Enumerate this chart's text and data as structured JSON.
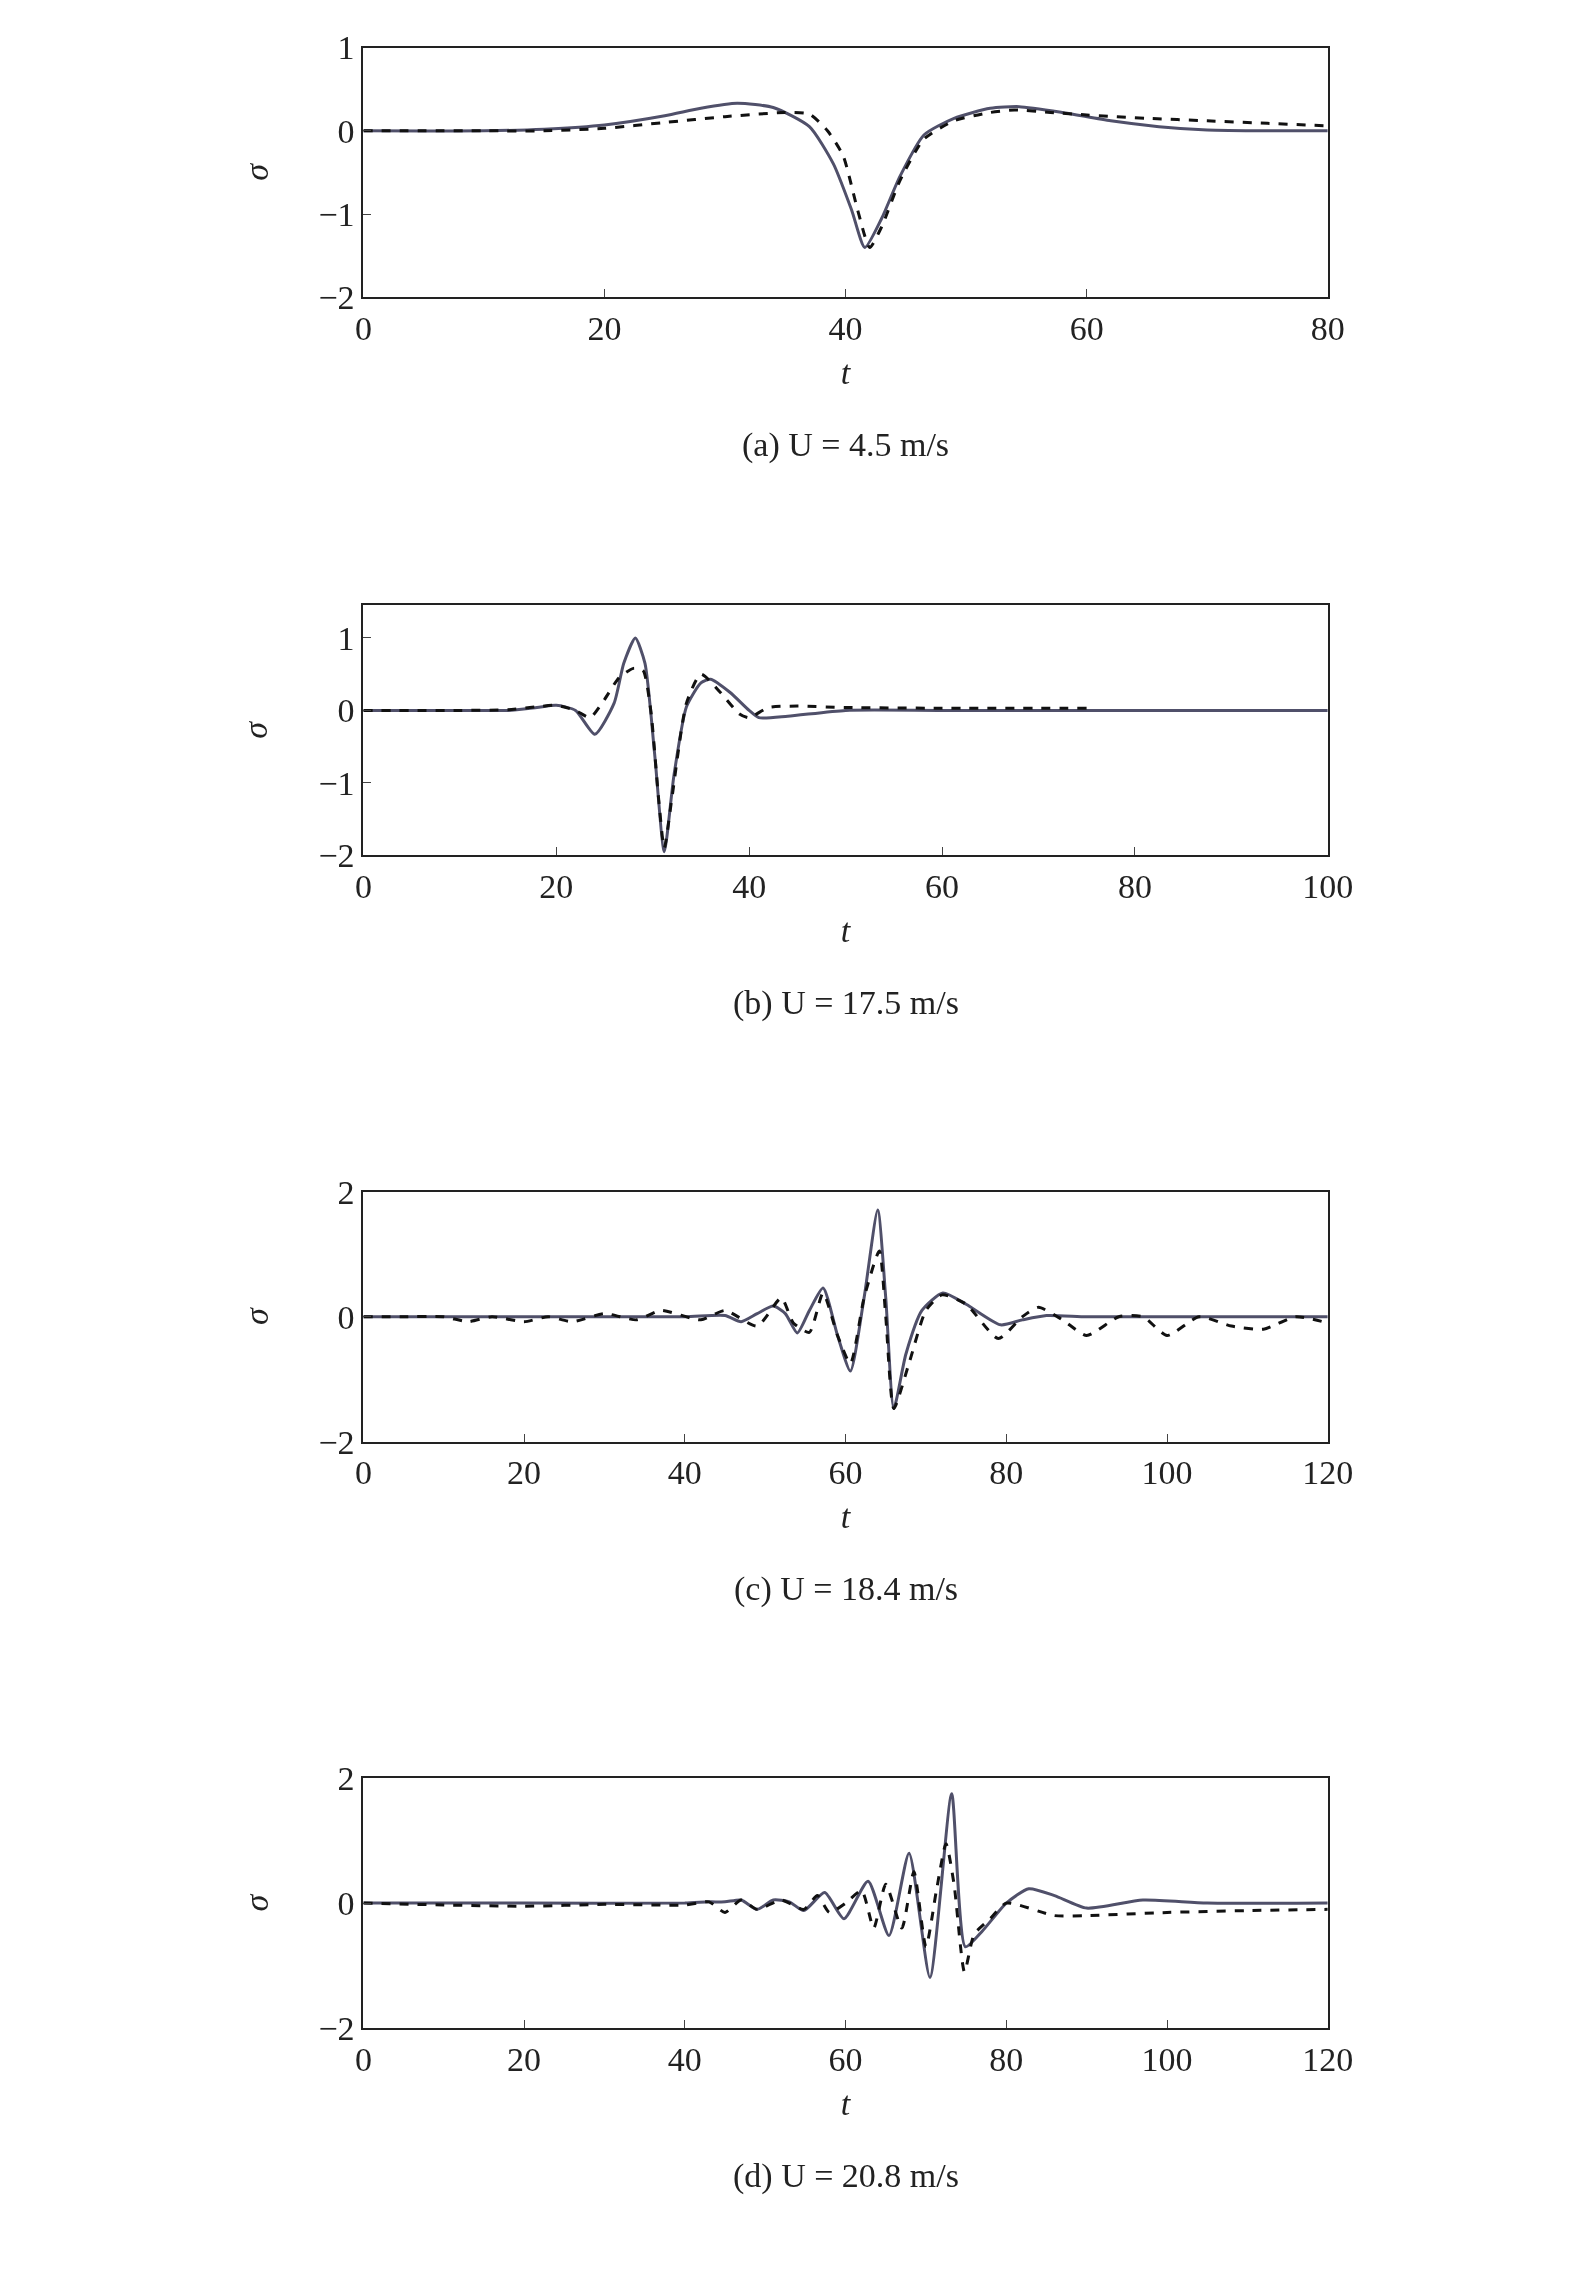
{
  "chart_data": [
    {
      "type": "line",
      "title": "(a) U = 4.5 m/s",
      "xlabel": "t",
      "ylabel": "σ",
      "xlim": [
        0,
        80
      ],
      "ylim": [
        -2,
        1
      ],
      "xticks": [
        0,
        20,
        40,
        60,
        80
      ],
      "yticks": [
        -2,
        -1,
        0,
        1
      ],
      "series": [
        {
          "color": "#50506a",
          "line_style": "solid",
          "x": [
            0,
            10,
            15,
            20,
            25,
            28,
            31,
            34,
            37,
            39,
            40.5,
            41.6,
            43,
            44.5,
            46.5,
            49,
            52,
            54.4,
            58,
            62,
            66,
            70,
            75,
            80
          ],
          "values": [
            0,
            0,
            0.02,
            0.07,
            0.18,
            0.27,
            0.33,
            0.28,
            0.05,
            -0.4,
            -0.95,
            -1.4,
            -1.05,
            -0.55,
            -0.05,
            0.15,
            0.27,
            0.29,
            0.22,
            0.12,
            0.05,
            0.01,
            0,
            0
          ]
        },
        {
          "color": "#111111",
          "line_style": "dashed",
          "x": [
            0,
            10,
            15,
            20,
            25,
            30,
            35,
            37,
            38.5,
            39.8,
            41,
            42,
            43,
            44.5,
            46.5,
            49,
            52,
            54,
            57,
            60,
            65,
            70,
            75,
            80
          ],
          "values": [
            0,
            0,
            0,
            0.03,
            0.1,
            0.17,
            0.22,
            0.2,
            0.0,
            -0.3,
            -0.95,
            -1.4,
            -1.15,
            -0.6,
            -0.1,
            0.12,
            0.22,
            0.25,
            0.22,
            0.19,
            0.15,
            0.12,
            0.09,
            0.06
          ]
        }
      ]
    },
    {
      "type": "line",
      "title": "(b) U = 17.5 m/s",
      "xlabel": "t",
      "ylabel": "σ",
      "xlim": [
        0,
        100
      ],
      "ylim": [
        -2,
        1.45
      ],
      "xticks": [
        0,
        20,
        40,
        60,
        80,
        100
      ],
      "yticks": [
        -2,
        -1,
        0,
        1
      ],
      "series": [
        {
          "color": "#50506a",
          "line_style": "solid",
          "x": [
            0,
            10,
            15,
            18,
            20,
            22,
            24,
            26,
            27,
            28.2,
            29.2,
            30.2,
            31.2,
            32.2,
            33.5,
            35,
            36,
            38,
            40,
            41,
            44,
            50,
            60,
            80,
            100
          ],
          "values": [
            0,
            0,
            0,
            0.04,
            0.07,
            0.0,
            -0.33,
            0.1,
            0.65,
            1.0,
            0.65,
            -0.6,
            -1.95,
            -0.9,
            0.05,
            0.38,
            0.43,
            0.25,
            0.0,
            -0.1,
            -0.08,
            0,
            0,
            0,
            0
          ]
        },
        {
          "color": "#111111",
          "line_style": "dashed",
          "x": [
            0,
            10,
            15,
            18,
            20,
            22,
            23.5,
            25,
            26.5,
            28,
            29,
            29.8,
            30.6,
            31.2,
            32,
            33.5,
            35,
            37,
            39,
            40,
            42,
            45,
            50,
            60,
            75
          ],
          "values": [
            0,
            0,
            0.01,
            0.05,
            0.07,
            0.0,
            -0.1,
            0.15,
            0.45,
            0.58,
            0.55,
            0.0,
            -1.2,
            -1.9,
            -1.2,
            0.1,
            0.5,
            0.25,
            -0.05,
            -0.1,
            0.04,
            0.06,
            0.04,
            0.03,
            0.03
          ]
        }
      ]
    },
    {
      "type": "line",
      "title": "(c) U = 18.4 m/s",
      "xlabel": "t",
      "ylabel": "σ",
      "xlim": [
        0,
        120
      ],
      "ylim": [
        -2,
        2
      ],
      "xticks": [
        0,
        20,
        40,
        60,
        80,
        100,
        120
      ],
      "yticks": [
        -2,
        0,
        2
      ],
      "series": [
        {
          "color": "#50506a",
          "line_style": "solid",
          "x": [
            0,
            20,
            40,
            45,
            47,
            49,
            51,
            52.5,
            54,
            55.5,
            57.2,
            59,
            60.6,
            62.3,
            64,
            65,
            66,
            67.5,
            69.5,
            72.1,
            75,
            79.3,
            82,
            85,
            90,
            100,
            120
          ],
          "values": [
            0,
            0,
            0,
            0.02,
            -0.08,
            0.05,
            0.17,
            0.05,
            -0.26,
            0.1,
            0.46,
            -0.3,
            -0.87,
            0.3,
            1.71,
            0.3,
            -1.47,
            -0.6,
            0.1,
            0.38,
            0.2,
            -0.13,
            -0.05,
            0.02,
            0,
            0,
            0
          ]
        },
        {
          "color": "#111111",
          "line_style": "dashed",
          "x": [
            0,
            5,
            10,
            13,
            16,
            20,
            23,
            26,
            30,
            34,
            37,
            42,
            45,
            49,
            52,
            53.5,
            55.5,
            57.2,
            59,
            60.6,
            62.3,
            64.2,
            65,
            66,
            68,
            70,
            72,
            75,
            79,
            82,
            84,
            87,
            90,
            94,
            97,
            100,
            104,
            108,
            112,
            116,
            120
          ],
          "values": [
            0,
            0,
            0,
            -0.08,
            0.0,
            -0.08,
            0,
            -0.08,
            0.05,
            -0.05,
            0.1,
            -0.05,
            0.1,
            -0.15,
            0.3,
            -0.1,
            -0.25,
            0.38,
            -0.3,
            -0.75,
            0.3,
            1.05,
            0.0,
            -1.47,
            -0.7,
            0.1,
            0.35,
            0.2,
            -0.35,
            0.0,
            0.15,
            -0.05,
            -0.3,
            0.0,
            0.0,
            -0.3,
            0,
            -0.15,
            -0.2,
            0,
            -0.1
          ]
        }
      ]
    },
    {
      "type": "line",
      "title": "(d) U = 20.8 m/s",
      "xlabel": "t",
      "ylabel": "σ",
      "xlim": [
        0,
        120
      ],
      "ylim": [
        -2,
        2
      ],
      "xticks": [
        0,
        20,
        40,
        60,
        80,
        100,
        120
      ],
      "yticks": [
        -2,
        0,
        2
      ],
      "series": [
        {
          "color": "#50506a",
          "line_style": "solid",
          "x": [
            0,
            20,
            40,
            43,
            45,
            47,
            49,
            51,
            53,
            54.8,
            57.4,
            59.8,
            62.8,
            65.4,
            67.9,
            70.5,
            73.2,
            74.9,
            77,
            80,
            82.8,
            86,
            90,
            97,
            105,
            120
          ],
          "values": [
            0,
            0,
            0,
            0.02,
            0.02,
            0.05,
            -0.1,
            0.05,
            0.02,
            -0.12,
            0.17,
            -0.25,
            0.35,
            -0.52,
            0.8,
            -1.19,
            1.75,
            -0.7,
            -0.45,
            0,
            0.23,
            0.12,
            -0.08,
            0.05,
            0.0,
            0
          ]
        },
        {
          "color": "#111111",
          "line_style": "dashed",
          "x": [
            0,
            10,
            20,
            30,
            40,
            43,
            45,
            47,
            49,
            52,
            54.8,
            56.5,
            58,
            60,
            62,
            63.5,
            65,
            67,
            68.5,
            70,
            71.3,
            72.5,
            73.5,
            74.8,
            76,
            78,
            80,
            86,
            90,
            100,
            110,
            120
          ],
          "values": [
            0,
            -0.03,
            -0.05,
            -0.02,
            -0.03,
            0.02,
            -0.15,
            0.05,
            -0.1,
            0.05,
            -0.1,
            0.12,
            -0.15,
            0.0,
            0.2,
            -0.4,
            0.3,
            -0.4,
            0.5,
            -0.7,
            0.2,
            0.95,
            0.3,
            -1.1,
            -0.5,
            -0.25,
            0.0,
            -0.2,
            -0.2,
            -0.15,
            -0.12,
            -0.1
          ]
        }
      ]
    }
  ]
}
